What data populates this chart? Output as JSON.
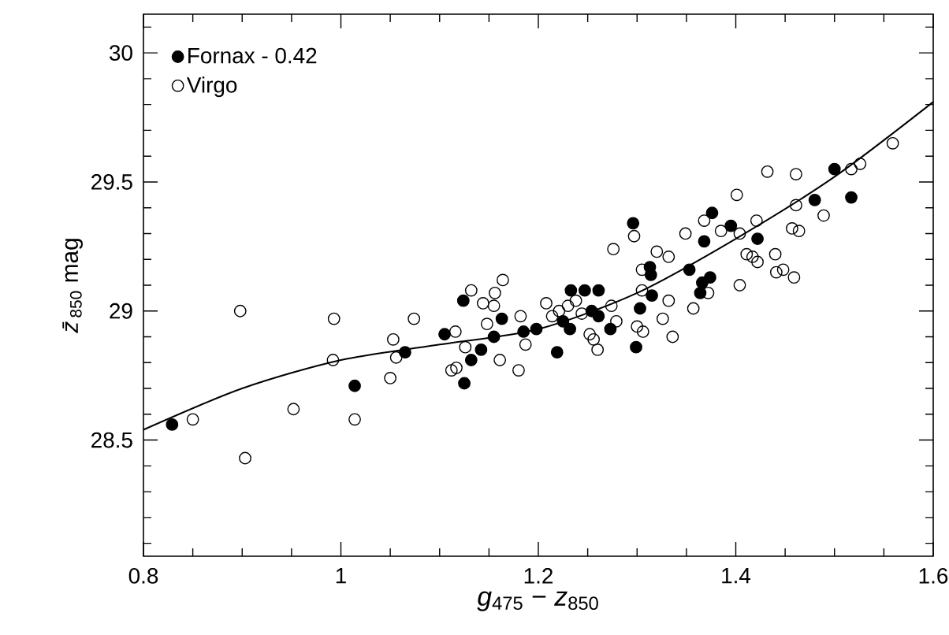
{
  "chart_data": {
    "type": "scatter",
    "xlabel": "*g*$_{475}$ − *z*$_{850}$",
    "ylabel": "*z̄*$_{850}$ mag",
    "xlim": [
      0.8,
      1.6
    ],
    "ylim": [
      28.05,
      30.15
    ],
    "xticks": [
      0.8,
      {
        "value": 0.85,
        "label": null
      },
      {
        "value": 0.9,
        "label": null
      },
      {
        "value": 0.95,
        "label": null
      },
      1,
      {
        "value": 1.05,
        "label": null
      },
      {
        "value": 1.1,
        "label": null
      },
      {
        "value": 1.15,
        "label": null
      },
      1.2,
      {
        "value": 1.25,
        "label": null
      },
      {
        "value": 1.3,
        "label": null
      },
      {
        "value": 1.35,
        "label": null
      },
      1.4,
      {
        "value": 1.45,
        "label": null
      },
      {
        "value": 1.5,
        "label": null
      },
      {
        "value": 1.55,
        "label": null
      },
      1.6
    ],
    "yticks": [
      {
        "value": 28.1,
        "label": null
      },
      {
        "value": 28.2,
        "label": null
      },
      {
        "value": 28.3,
        "label": null
      },
      {
        "value": 28.4,
        "label": null
      },
      28.5,
      {
        "value": 28.6,
        "label": null
      },
      {
        "value": 28.7,
        "label": null
      },
      {
        "value": 28.8,
        "label": null
      },
      {
        "value": 28.9,
        "label": null
      },
      29,
      {
        "value": 29.1,
        "label": null
      },
      {
        "value": 29.2,
        "label": null
      },
      {
        "value": 29.3,
        "label": null
      },
      {
        "value": 29.4,
        "label": null
      },
      29.5,
      {
        "value": 29.6,
        "label": null
      },
      {
        "value": 29.7,
        "label": null
      },
      {
        "value": 29.8,
        "label": null
      },
      {
        "value": 29.9,
        "label": null
      },
      30,
      {
        "value": 30.1,
        "label": null
      }
    ],
    "legend": "top left",
    "grid": false,
    "series": [
      {
        "name": "Fornax - 0.42",
        "marker": "circle",
        "color": "#000000",
        "x": [
          0.829,
          1.014,
          1.065,
          1.105,
          1.124,
          1.125,
          1.132,
          1.142,
          1.155,
          1.163,
          1.185,
          1.198,
          1.219,
          1.225,
          1.232,
          1.233,
          1.247,
          1.261,
          1.254,
          1.261,
          1.273,
          1.299,
          1.303,
          1.315,
          1.364,
          1.296,
          1.313,
          1.314,
          1.353,
          1.366,
          1.374,
          1.368,
          1.376,
          1.395,
          1.422,
          1.48,
          1.5,
          1.517
        ],
        "values": [
          28.56,
          28.71,
          28.84,
          28.91,
          29.04,
          28.72,
          28.81,
          28.85,
          28.9,
          28.97,
          28.92,
          28.93,
          28.84,
          28.96,
          28.93,
          29.08,
          29.08,
          29.08,
          29.0,
          28.98,
          28.93,
          28.86,
          29.01,
          29.06,
          29.07,
          29.34,
          29.17,
          29.14,
          29.16,
          29.11,
          29.13,
          29.27,
          29.38,
          29.33,
          29.28,
          29.43,
          29.55,
          29.44
        ]
      },
      {
        "name": "Virgo",
        "marker": "open circle",
        "color": "#000000",
        "x": [
          0.898,
          0.903,
          0.85,
          0.952,
          0.993,
          0.992,
          1.014,
          1.053,
          1.056,
          1.05,
          1.074,
          1.116,
          1.112,
          1.117,
          1.126,
          1.132,
          1.144,
          1.156,
          1.148,
          1.161,
          1.18,
          1.155,
          1.182,
          1.187,
          1.208,
          1.214,
          1.221,
          1.23,
          1.238,
          1.244,
          1.252,
          1.256,
          1.26,
          1.274,
          1.279,
          1.3,
          1.306,
          1.305,
          1.326,
          1.336,
          1.332,
          1.357,
          1.404,
          1.372,
          1.164,
          1.276,
          1.297,
          1.305,
          1.32,
          1.332,
          1.349,
          1.368,
          1.385,
          1.401,
          1.404,
          1.421,
          1.411,
          1.417,
          1.422,
          1.432,
          1.461,
          1.44,
          1.441,
          1.448,
          1.459,
          1.461,
          1.457,
          1.464,
          1.489,
          1.517,
          1.526,
          1.559
        ],
        "values": [
          29.0,
          28.43,
          28.58,
          28.62,
          28.97,
          28.81,
          28.58,
          28.89,
          28.82,
          28.74,
          28.97,
          28.92,
          28.77,
          28.78,
          28.86,
          29.08,
          29.03,
          29.07,
          28.95,
          28.81,
          28.77,
          29.02,
          28.98,
          28.87,
          29.03,
          28.98,
          29.0,
          29.02,
          29.04,
          28.99,
          28.91,
          28.89,
          28.85,
          29.02,
          28.96,
          28.94,
          28.92,
          29.08,
          28.97,
          28.9,
          29.04,
          29.01,
          29.1,
          29.07,
          29.12,
          29.24,
          29.29,
          29.16,
          29.23,
          29.21,
          29.3,
          29.35,
          29.31,
          29.45,
          29.3,
          29.35,
          29.22,
          29.21,
          29.19,
          29.54,
          29.53,
          29.22,
          29.15,
          29.16,
          29.13,
          29.41,
          29.32,
          29.31,
          29.37,
          29.55,
          29.57,
          29.65
        ]
      },
      {
        "type": "line",
        "line_style": "solid",
        "color": "#000000",
        "x": [
          0.8,
          0.9,
          1.0,
          1.1,
          1.2,
          1.3,
          1.4,
          1.5,
          1.6
        ],
        "values": [
          28.54,
          28.7,
          28.81,
          28.87,
          28.93,
          29.07,
          29.28,
          29.52,
          29.81
        ]
      }
    ]
  }
}
